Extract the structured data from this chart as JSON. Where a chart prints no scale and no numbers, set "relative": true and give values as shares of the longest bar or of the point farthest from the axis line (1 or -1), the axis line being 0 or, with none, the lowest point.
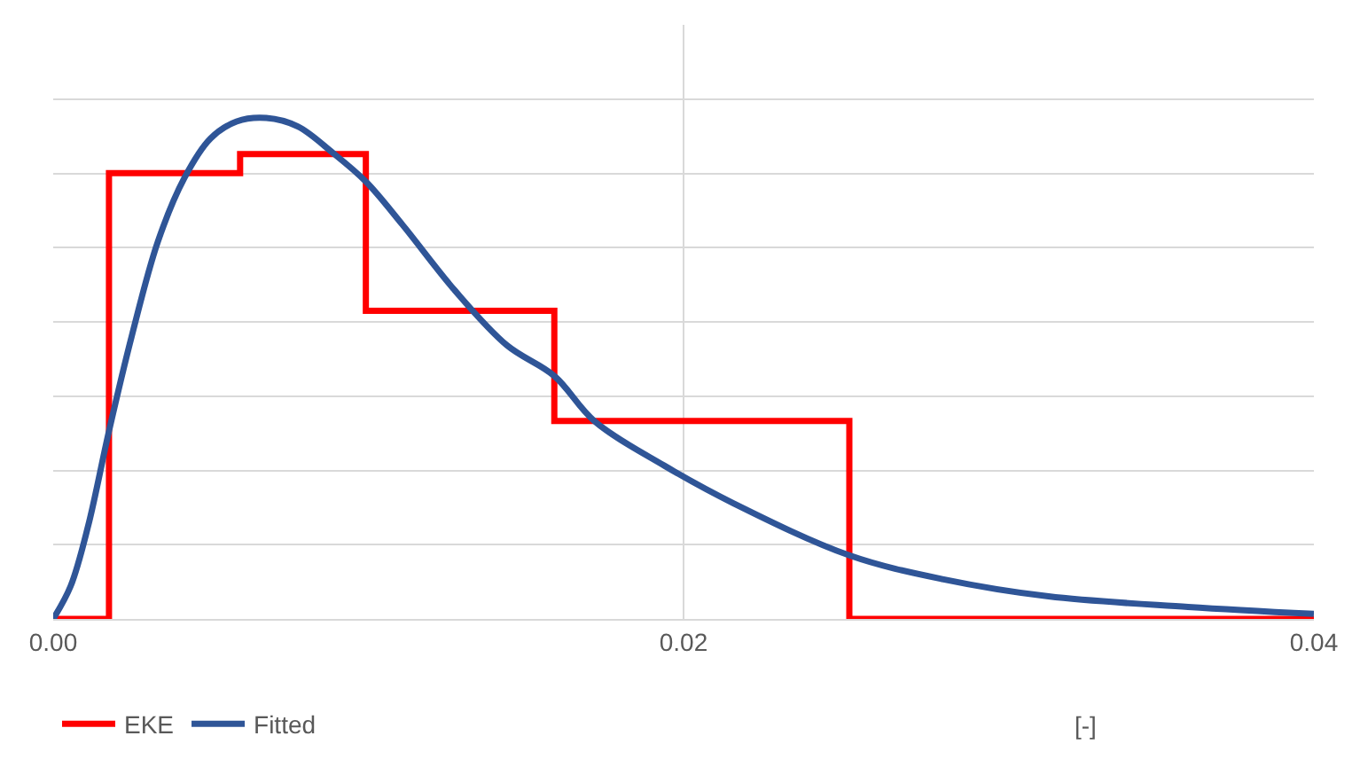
{
  "chart_data": {
    "type": "line",
    "relative": true,
    "xlabel": "[-]",
    "xlim": [
      0,
      0.04
    ],
    "xticks": [
      {
        "value": 0,
        "label": "0.00"
      },
      {
        "value": 0.02,
        "label": "0.02"
      },
      {
        "value": 0.04,
        "label": "0.04"
      }
    ],
    "grid": true,
    "legend": "bottom left",
    "marker": "none",
    "line_style": "solid",
    "series": [
      {
        "name": "EKE",
        "type": "step",
        "color": "#ff0000",
        "x": [
          0,
          0.00177,
          0.00593,
          0.00992,
          0.0159,
          0.02526,
          0.04
        ],
        "values": [
          0,
          0.89,
          0.928,
          0.615,
          0.395,
          0,
          0
        ]
      },
      {
        "name": "Fitted",
        "color": "#2f5597",
        "x": [
          0,
          0.00055,
          0.00111,
          0.00177,
          0.00249,
          0.00332,
          0.00416,
          0.00499,
          0.00582,
          0.00676,
          0.00776,
          0.00886,
          0.00992,
          0.01108,
          0.01274,
          0.0144,
          0.0159,
          0.01717,
          0.01939,
          0.02161,
          0.02526,
          0.02825,
          0.03158,
          0.03601,
          0.04
        ],
        "values": [
          0,
          0.065,
          0.186,
          0.375,
          0.564,
          0.753,
          0.88,
          0.959,
          0.993,
          1,
          0.983,
          0.931,
          0.873,
          0.787,
          0.656,
          0.546,
          0.485,
          0.395,
          0.306,
          0.23,
          0.127,
          0.079,
          0.045,
          0.024,
          0.01
        ]
      }
    ]
  }
}
